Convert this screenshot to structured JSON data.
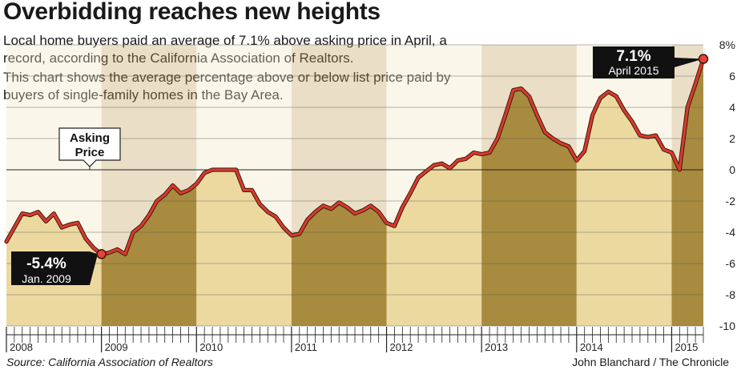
{
  "title": "Overbidding reaches new heights",
  "intro_paragraphs": [
    "Local home buyers paid an average of 7.1% above asking price in April, a record, according to the California Association of Realtors.",
    "This chart shows the average percentage above or below list price paid by buyers of single-family homes in the Bay Area."
  ],
  "source": "Source: California Association of Realtors",
  "byline": "John Blanchard / The Chronicle",
  "colors": {
    "line": "#d93a2b",
    "fill_light": "#ecd9a0",
    "fill_dark": "#a88b3f",
    "band_light": "#f2e6c3",
    "band_dark": "#c2a35c",
    "marker_fill": "#e9413a",
    "callout_bg": "#111111"
  },
  "chart_data": {
    "type": "area",
    "xlabel": "",
    "ylabel": "",
    "ylim": [
      -10,
      8
    ],
    "y_ticks": [
      8,
      6,
      4,
      2,
      0,
      -2,
      -4,
      -6,
      -8,
      -10
    ],
    "y_tick_labels": [
      "8%",
      "6",
      "4",
      "2",
      "0",
      "-2",
      "-4",
      "-6",
      "-8",
      "-10"
    ],
    "x_tick_labels": [
      "2008",
      "2009",
      "2010",
      "2011",
      "2012",
      "2013",
      "2014",
      "2015"
    ],
    "grid": true,
    "x_start": "Jan 2008",
    "x_end": "Apr 2015",
    "series": [
      {
        "values": [
          -4.6,
          -3.7,
          -2.8,
          -2.9,
          -2.7,
          -3.3,
          -2.8,
          -3.7,
          -3.5,
          -3.4,
          -4.4,
          -5.0,
          -5.4,
          -5.3,
          -5.1,
          -5.4,
          -4.0,
          -3.6,
          -2.9,
          -2.0,
          -1.6,
          -1.0,
          -1.5,
          -1.3,
          -0.9,
          -0.2,
          0.0,
          0.0,
          0.0,
          0.0,
          -1.3,
          -1.3,
          -2.2,
          -2.7,
          -3.0,
          -3.7,
          -4.2,
          -4.1,
          -3.2,
          -2.7,
          -2.3,
          -2.5,
          -2.1,
          -2.4,
          -2.8,
          -2.6,
          -2.3,
          -2.7,
          -3.4,
          -3.6,
          -2.4,
          -1.5,
          -0.5,
          -0.1,
          0.3,
          0.4,
          0.1,
          0.6,
          0.7,
          1.1,
          1.0,
          1.1,
          2.0,
          3.5,
          5.1,
          5.2,
          4.7,
          3.5,
          2.4,
          2.0,
          1.7,
          1.5,
          0.6,
          1.2,
          3.5,
          4.6,
          5.0,
          4.7,
          3.8,
          3.1,
          2.2,
          2.1,
          2.2,
          1.3,
          1.1,
          0.0,
          4.0,
          5.5,
          7.1
        ]
      }
    ],
    "annotations": [
      {
        "value_label": "-5.4%",
        "date_label": "Jan. 2009"
      },
      {
        "value_label": "7.1%",
        "date_label": "April 2015"
      },
      {
        "label_line1": "Asking",
        "label_line2": "Price"
      }
    ]
  }
}
